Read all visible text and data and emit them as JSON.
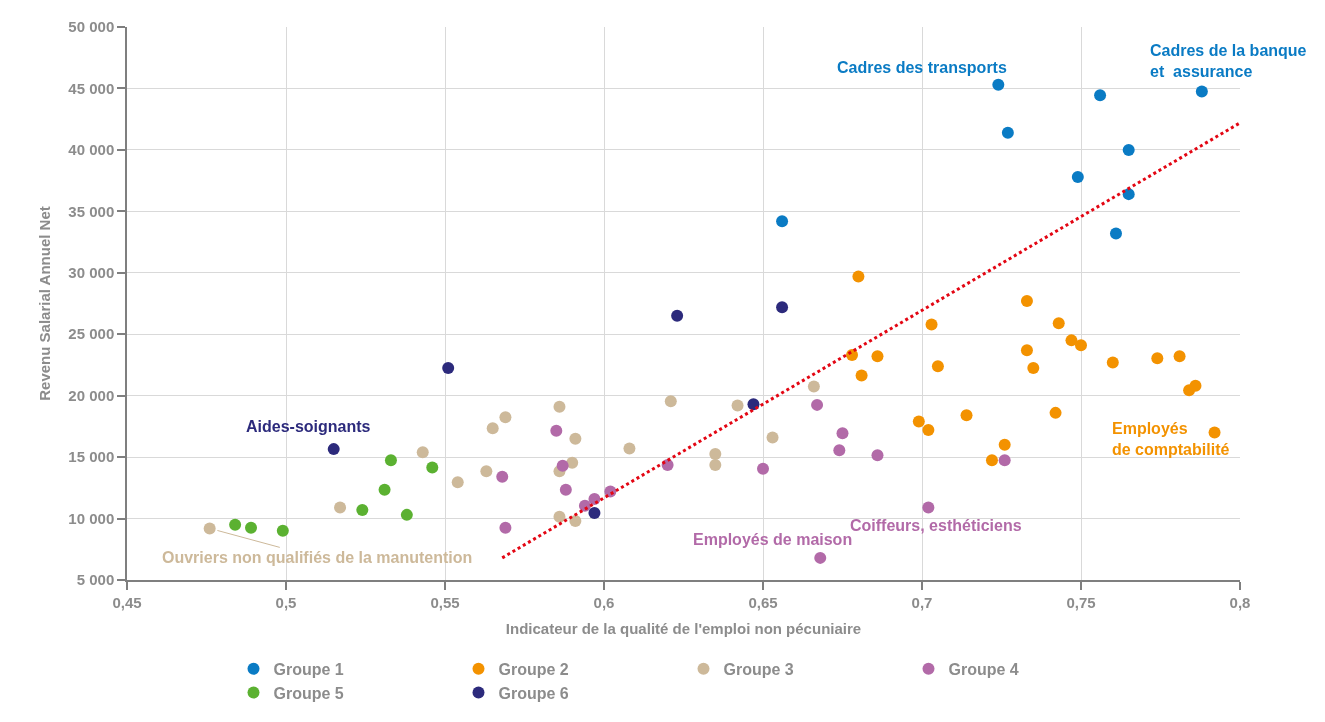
{
  "chart_data": {
    "type": "scatter",
    "xlabel": "Indicateur de la qualité de l'emploi non pécuniaire",
    "ylabel": "Revenu Salarial Annuel Net",
    "xlim": [
      0.45,
      0.8
    ],
    "xticks": [
      {
        "value": 0.45,
        "label": "0,45"
      },
      {
        "value": 0.5,
        "label": "0,5"
      },
      {
        "value": 0.55,
        "label": "0,55"
      },
      {
        "value": 0.6,
        "label": "0,6"
      },
      {
        "value": 0.65,
        "label": "0,65"
      },
      {
        "value": 0.7,
        "label": "0,7"
      },
      {
        "value": 0.75,
        "label": "0,75"
      },
      {
        "value": 0.8,
        "label": "0,8"
      }
    ],
    "ylim": [
      5000,
      50000
    ],
    "yticks": [
      {
        "value": 5000,
        "label": "5 000"
      },
      {
        "value": 10000,
        "label": "10 000"
      },
      {
        "value": 15000,
        "label": "15 000"
      },
      {
        "value": 20000,
        "label": "20 000"
      },
      {
        "value": 25000,
        "label": "25 000"
      },
      {
        "value": 30000,
        "label": "30 000"
      },
      {
        "value": 35000,
        "label": "35 000"
      },
      {
        "value": 40000,
        "label": "40 000"
      },
      {
        "value": 45000,
        "label": "45 000"
      },
      {
        "value": 50000,
        "label": "50 000"
      }
    ],
    "grid": true,
    "legend": "bottom",
    "marker": "circle",
    "line_style": "dotted",
    "series": [
      {
        "name": "Groupe 1",
        "color": "#0a7bc4",
        "x": [
          0.724,
          0.727,
          0.756,
          0.765,
          0.749,
          0.765,
          0.761,
          0.788,
          0.656
        ],
        "values": [
          45300,
          41400,
          44450,
          40000,
          37800,
          36400,
          33200,
          44750,
          34200
        ]
      },
      {
        "name": "Groupe 2",
        "color": "#f39200",
        "x": [
          0.68,
          0.678,
          0.686,
          0.681,
          0.703,
          0.705,
          0.733,
          0.743,
          0.747,
          0.75,
          0.733,
          0.735,
          0.76,
          0.774,
          0.781,
          0.784,
          0.786,
          0.792,
          0.742,
          0.714,
          0.699,
          0.702,
          0.726,
          0.722
        ],
        "values": [
          29700,
          23300,
          23200,
          21650,
          25800,
          22400,
          27700,
          25900,
          24500,
          24100,
          23700,
          22250,
          22700,
          23050,
          23200,
          20450,
          20800,
          17000,
          18600,
          18400,
          17900,
          17200,
          16000,
          14750
        ]
      },
      {
        "name": "Groupe 3",
        "color": "#cdb99a",
        "x": [
          0.476,
          0.517,
          0.543,
          0.554,
          0.563,
          0.565,
          0.569,
          0.586,
          0.591,
          0.59,
          0.586,
          0.608,
          0.621,
          0.586,
          0.591,
          0.642,
          0.666,
          0.653,
          0.635,
          0.635
        ],
        "values": [
          9200,
          10900,
          15400,
          12950,
          13850,
          17350,
          18250,
          19100,
          16500,
          14550,
          13850,
          15700,
          19550,
          10150,
          9800,
          19200,
          20750,
          16600,
          15250,
          14350
        ]
      },
      {
        "name": "Groupe 4",
        "color": "#b26aa8",
        "x": [
          0.568,
          0.569,
          0.585,
          0.587,
          0.588,
          0.594,
          0.597,
          0.602,
          0.62,
          0.65,
          0.667,
          0.675,
          0.674,
          0.686,
          0.702,
          0.668,
          0.726
        ],
        "values": [
          13400,
          9250,
          17150,
          14300,
          12350,
          11050,
          11600,
          12200,
          14350,
          14050,
          19250,
          16950,
          15550,
          15150,
          10900,
          6800,
          14750
        ]
      },
      {
        "name": "Groupe 5",
        "color": "#5bb131",
        "x": [
          0.484,
          0.489,
          0.499,
          0.524,
          0.531,
          0.533,
          0.546,
          0.538
        ],
        "values": [
          9500,
          9250,
          9000,
          10700,
          12350,
          14750,
          14150,
          10300
        ]
      },
      {
        "name": "Groupe 6",
        "color": "#2c2a7c",
        "x": [
          0.515,
          0.551,
          0.597,
          0.623,
          0.656,
          0.647
        ],
        "values": [
          15650,
          22250,
          10450,
          26500,
          27200,
          19300
        ]
      },
      {
        "type": "line",
        "marker": "none",
        "color": "#e30613",
        "x": [
          0.568,
          0.8
        ],
        "values": [
          6800,
          42200
        ]
      }
    ],
    "annotations": [
      {
        "text": "Cadres des transports",
        "x": 0.724,
        "y": 45300
      },
      {
        "text": "Cadres de la banque\net  assurance",
        "x": 0.788,
        "y": 44750
      },
      {
        "text": "Aides-soignants",
        "x": 0.515,
        "y": 15650
      },
      {
        "text": "Ouvriers non qualifiés de la manutention",
        "x": 0.476,
        "y": 9200
      },
      {
        "text": "Employés de maison",
        "x": 0.668,
        "y": 6800
      },
      {
        "text": "Coiffeurs, esthéticiens",
        "x": 0.702,
        "y": 10900
      },
      {
        "text": "Employés\nde comptabilité",
        "x": 0.792,
        "y": 17000
      }
    ]
  }
}
